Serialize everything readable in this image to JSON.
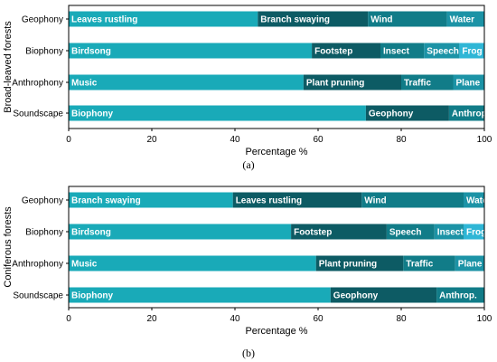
{
  "palette": [
    "#19aab8",
    "#0d5b64",
    "#117c88",
    "#1c93a6",
    "#2fb6d6"
  ],
  "chart_data": [
    {
      "type": "bar",
      "orientation": "horizontal",
      "stacked": true,
      "caption": "(a)",
      "ylabel": "Broad-leaved forests",
      "xlabel": "Percentage %",
      "xlim": [
        0,
        100
      ],
      "xticks": [
        "0",
        "20",
        "40",
        "60",
        "80",
        "100"
      ],
      "grid": false,
      "rows": [
        {
          "label": "Geophony",
          "segments": [
            {
              "name": "Leaves rustling",
              "value": 45.5
            },
            {
              "name": "Branch swaying",
              "value": 26.5
            },
            {
              "name": "Wind",
              "value": 19
            },
            {
              "name": "Water",
              "value": 9
            }
          ]
        },
        {
          "label": "Biophony",
          "segments": [
            {
              "name": "Birdsong",
              "value": 58.5
            },
            {
              "name": "Footstep",
              "value": 16.5
            },
            {
              "name": "Insect",
              "value": 10.5
            },
            {
              "name": "Speech",
              "value": 8.5
            },
            {
              "name": "Frog",
              "value": 6
            }
          ]
        },
        {
          "label": "Anthrophony",
          "segments": [
            {
              "name": "Music",
              "value": 56.5
            },
            {
              "name": "Plant pruning",
              "value": 23.5
            },
            {
              "name": "Traffic",
              "value": 12.5
            },
            {
              "name": "Plane",
              "value": 7.5
            }
          ]
        },
        {
          "label": "Soundscape",
          "segments": [
            {
              "name": "Biophony",
              "value": 71.5
            },
            {
              "name": "Geophony",
              "value": 20
            },
            {
              "name": "Anthrop.",
              "value": 8.5
            }
          ]
        }
      ]
    },
    {
      "type": "bar",
      "orientation": "horizontal",
      "stacked": true,
      "caption": "(b)",
      "ylabel": "Coniferous forests",
      "xlabel": "Percentage %",
      "xlim": [
        0,
        100
      ],
      "xticks": [
        "0",
        "20",
        "40",
        "60",
        "80",
        "100"
      ],
      "grid": false,
      "rows": [
        {
          "label": "Geophony",
          "segments": [
            {
              "name": "Branch swaying",
              "value": 39.5
            },
            {
              "name": "Leaves rustling",
              "value": 31
            },
            {
              "name": "Wind",
              "value": 24.5
            },
            {
              "name": "Water",
              "value": 5
            }
          ]
        },
        {
          "label": "Biophony",
          "segments": [
            {
              "name": "Birdsong",
              "value": 53.5
            },
            {
              "name": "Footstep",
              "value": 23
            },
            {
              "name": "Speech",
              "value": 11.5
            },
            {
              "name": "Insect",
              "value": 7
            },
            {
              "name": "Frog",
              "value": 5
            }
          ]
        },
        {
          "label": "Anthrophony",
          "segments": [
            {
              "name": "Music",
              "value": 59.5
            },
            {
              "name": "Plant pruning",
              "value": 21
            },
            {
              "name": "Traffic",
              "value": 12.5
            },
            {
              "name": "Plane",
              "value": 7
            }
          ]
        },
        {
          "label": "Soundscape",
          "segments": [
            {
              "name": "Biophony",
              "value": 63
            },
            {
              "name": "Geophony",
              "value": 25.5
            },
            {
              "name": "Anthrop.",
              "value": 11.5
            }
          ]
        }
      ]
    }
  ]
}
